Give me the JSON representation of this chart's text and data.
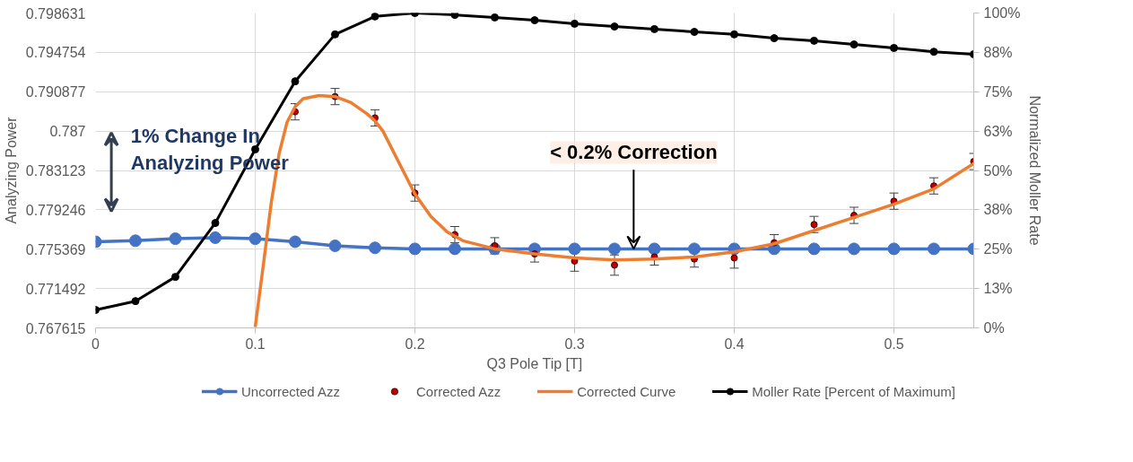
{
  "chart_data": {
    "type": "line",
    "xlabel": "Q3 Pole Tip [T]",
    "ylabel": "Analyzing Power",
    "y2label": "Normalized Moller Rate",
    "xlim": [
      0,
      0.55
    ],
    "xticks": [
      0,
      0.1,
      0.2,
      0.3,
      0.4,
      0.5
    ],
    "ylim": [
      0.767615,
      0.798631
    ],
    "yticks": [
      0.767615,
      0.771492,
      0.775369,
      0.779246,
      0.783123,
      0.787,
      0.790877,
      0.794754,
      0.798631
    ],
    "y2lim": [
      0,
      100
    ],
    "y2ticks": [
      {
        "value": 0,
        "label": "0%"
      },
      {
        "value": 12.5,
        "label": "13%"
      },
      {
        "value": 25,
        "label": "25%"
      },
      {
        "value": 37.5,
        "label": "38%"
      },
      {
        "value": 50,
        "label": "50%"
      },
      {
        "value": 62.5,
        "label": "63%"
      },
      {
        "value": 75,
        "label": "75%"
      },
      {
        "value": 87.5,
        "label": "88%"
      },
      {
        "value": 100,
        "label": "100%"
      }
    ],
    "grid": true,
    "legend": "bottom",
    "series": [
      {
        "name": "Uncorrected Azz",
        "marker": "circle",
        "color": "#4472c4",
        "x": [
          0,
          0.025,
          0.05,
          0.075,
          0.1,
          0.125,
          0.15,
          0.175,
          0.2,
          0.225,
          0.25,
          0.275,
          0.3,
          0.325,
          0.35,
          0.375,
          0.4,
          0.425,
          0.45,
          0.475,
          0.5,
          0.525,
          0.55
        ],
        "values": [
          0.7761,
          0.7762,
          0.7764,
          0.7765,
          0.7764,
          0.7761,
          0.7757,
          0.7755,
          0.7754,
          0.7754,
          0.7754,
          0.7754,
          0.7754,
          0.7754,
          0.7754,
          0.7754,
          0.7754,
          0.7754,
          0.7754,
          0.7754,
          0.7754,
          0.7754,
          0.7754
        ]
      },
      {
        "name": "Corrected Azz",
        "type": "scatter",
        "marker": "circle",
        "color": "#c00000",
        "x": [
          0.125,
          0.15,
          0.175,
          0.2,
          0.225,
          0.25,
          0.275,
          0.3,
          0.325,
          0.35,
          0.375,
          0.4,
          0.425,
          0.45,
          0.475,
          0.5,
          0.525,
          0.55
        ],
        "values": [
          0.7889,
          0.7904,
          0.7883,
          0.7809,
          0.7768,
          0.7757,
          0.7749,
          0.7742,
          0.7738,
          0.7746,
          0.7744,
          0.7745,
          0.776,
          0.7778,
          0.7787,
          0.7801,
          0.7816,
          0.784
        ],
        "errors": [
          0.0008,
          0.0008,
          0.0008,
          0.0008,
          0.0008,
          0.0008,
          0.0008,
          0.001,
          0.001,
          0.0008,
          0.0008,
          0.001,
          0.0008,
          0.0008,
          0.0008,
          0.0008,
          0.0008,
          0.0008
        ]
      },
      {
        "name": "Corrected Curve",
        "marker": "none",
        "color": "#ed7d31",
        "x": [
          0.1,
          0.105,
          0.11,
          0.115,
          0.12,
          0.125,
          0.13,
          0.14,
          0.15,
          0.16,
          0.17,
          0.175,
          0.18,
          0.19,
          0.2,
          0.21,
          0.22,
          0.23,
          0.25,
          0.275,
          0.3,
          0.325,
          0.35,
          0.375,
          0.4,
          0.425,
          0.45,
          0.475,
          0.5,
          0.525,
          0.55
        ],
        "values": [
          0.7677,
          0.7737,
          0.7799,
          0.7848,
          0.7879,
          0.7894,
          0.7902,
          0.7905,
          0.7904,
          0.7898,
          0.7887,
          0.788,
          0.787,
          0.7839,
          0.7808,
          0.7786,
          0.7771,
          0.7762,
          0.7754,
          0.7749,
          0.7745,
          0.7743,
          0.7744,
          0.7746,
          0.7751,
          0.7759,
          0.7772,
          0.7785,
          0.7798,
          0.7813,
          0.7838
        ]
      },
      {
        "name": "Moller Rate [Percent of Maximum]",
        "marker": "circle",
        "color": "#000000",
        "axis": "y2",
        "x": [
          0,
          0.025,
          0.05,
          0.075,
          0.1,
          0.125,
          0.15,
          0.175,
          0.2,
          0.225,
          0.25,
          0.275,
          0.3,
          0.325,
          0.35,
          0.375,
          0.4,
          0.425,
          0.45,
          0.475,
          0.5,
          0.525,
          0.55
        ],
        "values": [
          5.7,
          8.5,
          16.2,
          33.3,
          56.7,
          78.3,
          93.2,
          98.9,
          100,
          99.4,
          98.6,
          97.7,
          96.6,
          95.7,
          94.9,
          94.0,
          93.2,
          92.0,
          91.2,
          90.0,
          88.9,
          87.7,
          86.9
        ]
      }
    ],
    "annotations": [
      "1% Change In Analyzing Power",
      {
        "text": "< 0.2% Correction",
        "x": 0.337,
        "y": 0.7754
      }
    ]
  }
}
